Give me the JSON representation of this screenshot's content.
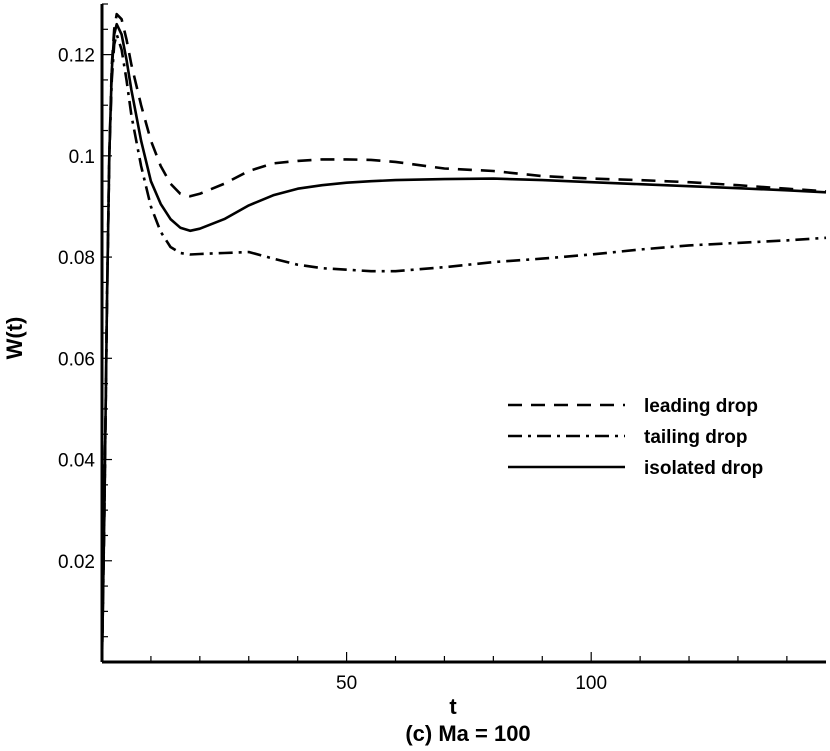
{
  "chart_data": {
    "type": "line",
    "title": "",
    "caption": "(c) Ma = 100",
    "xlabel": "t",
    "ylabel": "W(t)",
    "xlim": [
      0,
      148
    ],
    "ylim": [
      0,
      0.13
    ],
    "x_ticks": [
      50,
      100
    ],
    "x_tick_labels": [
      "50",
      "100"
    ],
    "y_ticks": [
      0.02,
      0.04,
      0.06,
      0.08,
      0.1,
      0.12
    ],
    "y_tick_labels": [
      "0.02",
      "0.04",
      "0.06",
      "0.08",
      "0.1",
      "0.12"
    ],
    "grid": false,
    "legend_position": "center-right",
    "series": [
      {
        "name": "leading drop",
        "style": "dashed",
        "x": [
          0,
          0.5,
          1,
          1.5,
          2,
          2.5,
          3,
          4,
          5,
          6,
          8,
          10,
          12,
          14,
          16,
          18,
          20,
          25,
          30,
          35,
          40,
          45,
          50,
          55,
          60,
          70,
          80,
          90,
          100,
          110,
          120,
          130,
          140,
          148
        ],
        "y": [
          0.0,
          0.03,
          0.07,
          0.1,
          0.118,
          0.125,
          0.128,
          0.127,
          0.123,
          0.118,
          0.11,
          0.103,
          0.098,
          0.0945,
          0.0925,
          0.092,
          0.0925,
          0.0945,
          0.097,
          0.0985,
          0.099,
          0.0993,
          0.0993,
          0.0992,
          0.0988,
          0.0975,
          0.097,
          0.096,
          0.0955,
          0.0952,
          0.0948,
          0.0942,
          0.0935,
          0.093
        ]
      },
      {
        "name": "tailing drop",
        "style": "dashdot",
        "x": [
          0,
          0.5,
          1,
          1.5,
          2,
          2.5,
          3,
          4,
          5,
          6,
          8,
          10,
          12,
          14,
          16,
          18,
          20,
          25,
          30,
          35,
          40,
          45,
          50,
          55,
          60,
          70,
          80,
          90,
          100,
          110,
          120,
          130,
          140,
          148
        ],
        "y": [
          0.0,
          0.03,
          0.07,
          0.1,
          0.115,
          0.122,
          0.124,
          0.121,
          0.115,
          0.108,
          0.098,
          0.09,
          0.085,
          0.082,
          0.0808,
          0.0805,
          0.0806,
          0.0808,
          0.081,
          0.0797,
          0.0785,
          0.0778,
          0.0775,
          0.0772,
          0.0772,
          0.078,
          0.079,
          0.0797,
          0.0805,
          0.0815,
          0.0823,
          0.0828,
          0.0833,
          0.0838
        ]
      },
      {
        "name": "isolated drop",
        "style": "solid",
        "x": [
          0,
          0.5,
          1,
          1.5,
          2,
          2.5,
          3,
          4,
          5,
          6,
          8,
          10,
          12,
          14,
          16,
          18,
          20,
          25,
          30,
          35,
          40,
          45,
          50,
          55,
          60,
          70,
          80,
          90,
          100,
          110,
          120,
          130,
          140,
          148
        ],
        "y": [
          0.0,
          0.03,
          0.07,
          0.1,
          0.117,
          0.124,
          0.126,
          0.124,
          0.119,
          0.113,
          0.103,
          0.095,
          0.0905,
          0.0875,
          0.0858,
          0.0852,
          0.0856,
          0.0875,
          0.0902,
          0.0922,
          0.0935,
          0.0942,
          0.0947,
          0.095,
          0.0952,
          0.0954,
          0.0955,
          0.0952,
          0.0948,
          0.0944,
          0.094,
          0.0936,
          0.0932,
          0.0928
        ]
      }
    ]
  }
}
